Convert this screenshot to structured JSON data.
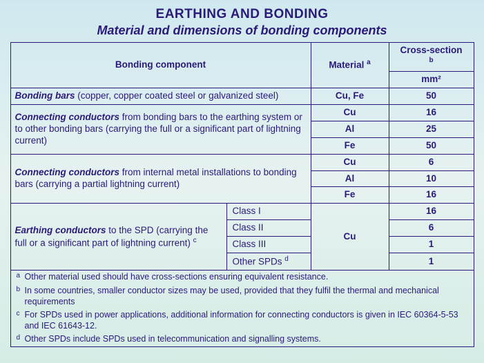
{
  "title": "EARTHING AND BONDING",
  "subtitle": "Material and dimensions of bonding components",
  "headers": {
    "component": "Bonding component",
    "material": "Material",
    "material_note": "a",
    "cross_section": "Cross-section",
    "cross_section_note": "b",
    "unit": "mm²"
  },
  "rows": {
    "bonding_bars": {
      "label_strong": "Bonding bars",
      "label_rest": " (copper, copper coated steel or galvanized steel)",
      "material": "Cu, Fe",
      "cs": "50"
    },
    "cc_full": {
      "label_strong": "Connecting conductors",
      "label_rest": " from bonding bars to the earthing system or to other bonding bars (carrying the full or a significant part of lightning current)",
      "mats": [
        "Cu",
        "Al",
        "Fe"
      ],
      "css": [
        "16",
        "25",
        "50"
      ]
    },
    "cc_partial": {
      "label_strong": "Connecting conductors",
      "label_rest": " from internal metal installations to bonding bars (carrying a partial lightning current)",
      "mats": [
        "Cu",
        "Al",
        "Fe"
      ],
      "css": [
        "6",
        "10",
        "16"
      ]
    },
    "earthing": {
      "label_strong": "Earthing conductors",
      "label_rest": " to the SPD (carrying the full or a significant part of lightning current)",
      "label_note": "c",
      "classes": [
        "Class I",
        "Class II",
        "Class III",
        "Other SPDs"
      ],
      "class_note": "d",
      "material": "Cu",
      "css": [
        "16",
        "6",
        "1",
        "1"
      ]
    }
  },
  "footnotes": {
    "a": "Other material used should have cross-sections ensuring equivalent resistance.",
    "b": "In some countries, smaller conductor sizes may be used, provided that they fulfil the thermal and mechanical requirements",
    "c": "For SPDs used in power applications, additional information for connecting conductors is given in IEC 60364-5-53 and IEC 61643-12.",
    "d": "Other SPDs include SPDs used in telecommunication and signalling systems."
  }
}
